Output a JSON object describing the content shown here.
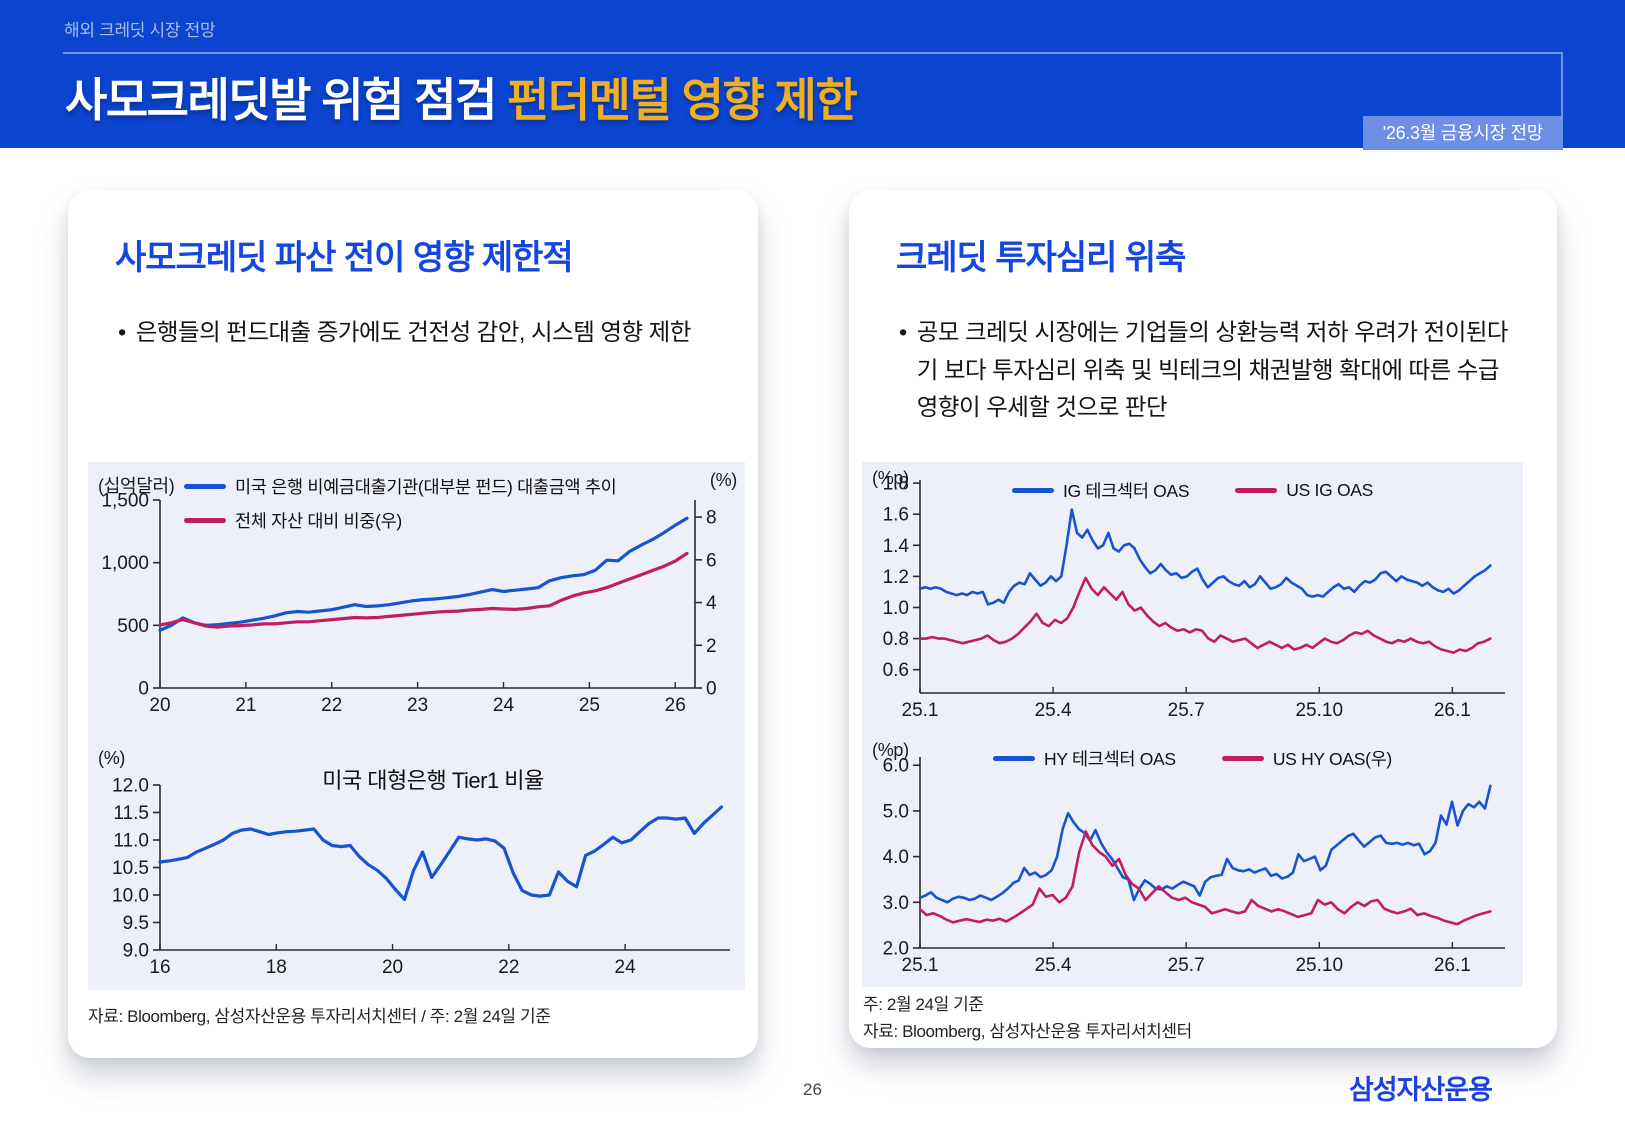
{
  "header": {
    "eyebrow": "해외 크레딧 시장 전망",
    "title_main": "사모크레딧발 위험 점검",
    "title_accent": "펀더멘털 영향 제한",
    "badge": "'26.3월 금융시장 전망"
  },
  "footer": {
    "page_number": "26",
    "logo": "삼성자산운용"
  },
  "left_panel": {
    "title": "사모크레딧 파산 전이 영향 제한적",
    "bullet_marker": "•",
    "bullet": "은행들의 펀드대출 증가에도 건전성 감안, 시스템 영향 제한",
    "source": "자료: Bloomberg, 삼성자산운용 투자리서치센터 / 주: 2월 24일 기준"
  },
  "right_panel": {
    "title": "크레딧 투자심리 위축",
    "bullet_marker": "•",
    "bullet": "공모 크레딧 시장에는 기업들의 상환능력 저하 우려가 전이된다기 보다 투자심리 위축 및 빅테크의 채권발행 확대에 따른 수급 영향이 우세할 것으로 판단",
    "note": "주: 2월 24일 기준",
    "source": "자료: Bloomberg, 삼성자산운용 투자리서치센터"
  },
  "colors": {
    "header_bg": "#0A44CF",
    "badge_bg": "#6E8FE6",
    "accent_yellow": "#F0AF23",
    "panel_title_blue": "#1447E0",
    "line_blue": "#1655CF",
    "line_pink": "#C01E5F",
    "chart_bg": "#EEF0F9"
  },
  "chart_data": [
    {
      "type": "line",
      "unit_left": "(십억달러)",
      "unit_right": "(%)",
      "legend": [
        {
          "label": "미국 은행 비예금대출기관(대부분 펀드) 대출금액 추이",
          "color": "#1655CF"
        },
        {
          "label": "전체 자산 대비 비중(우)",
          "color": "#C01E5F"
        }
      ],
      "ylim_left": [
        0,
        1500
      ],
      "yticks_left": [
        {
          "label": "1,500",
          "v": 1500
        },
        {
          "label": "1,000",
          "v": 1000
        },
        {
          "label": "500",
          "v": 500
        },
        {
          "label": "0",
          "v": 0
        }
      ],
      "ylim_right": [
        0,
        8.8
      ],
      "yticks_right": [
        {
          "label": "8",
          "v": 8
        },
        {
          "label": "6",
          "v": 6
        },
        {
          "label": "4",
          "v": 4
        },
        {
          "label": "2",
          "v": 2
        },
        {
          "label": "0",
          "v": 0
        }
      ],
      "xticks": [
        {
          "label": "20",
          "f": 0.0
        },
        {
          "label": "21",
          "f": 0.1605
        },
        {
          "label": "22",
          "f": 0.321
        },
        {
          "label": "23",
          "f": 0.4815
        },
        {
          "label": "24",
          "f": 0.642
        },
        {
          "label": "25",
          "f": 0.8026
        },
        {
          "label": "26",
          "f": 0.963
        }
      ],
      "series": [
        {
          "name": "미국 은행 비예금대출기관(대부분 펀드) 대출금액 추이",
          "color": "#1655CF",
          "axis": "left",
          "width": 3.2,
          "x0": 0,
          "x1": 0.985,
          "values": [
            460,
            500,
            560,
            520,
            500,
            505,
            515,
            525,
            540,
            555,
            575,
            600,
            610,
            605,
            615,
            625,
            645,
            665,
            650,
            655,
            665,
            680,
            695,
            705,
            710,
            720,
            730,
            745,
            765,
            785,
            770,
            780,
            790,
            800,
            855,
            880,
            895,
            905,
            940,
            1020,
            1015,
            1090,
            1140,
            1185,
            1240,
            1300,
            1355
          ]
        },
        {
          "name": "전체 자산 대비 비중(우)",
          "color": "#C01E5F",
          "axis": "right",
          "width": 3.2,
          "x0": 0,
          "x1": 0.985,
          "values": [
            2.95,
            3.05,
            3.2,
            3.05,
            2.9,
            2.85,
            2.9,
            2.92,
            2.95,
            3.0,
            3.0,
            3.05,
            3.1,
            3.1,
            3.15,
            3.2,
            3.25,
            3.3,
            3.28,
            3.3,
            3.35,
            3.4,
            3.45,
            3.5,
            3.55,
            3.58,
            3.6,
            3.65,
            3.68,
            3.72,
            3.7,
            3.68,
            3.72,
            3.8,
            3.85,
            4.1,
            4.3,
            4.45,
            4.55,
            4.7,
            4.9,
            5.1,
            5.3,
            5.5,
            5.7,
            5.95,
            6.3
          ]
        }
      ]
    },
    {
      "type": "line",
      "title": "미국 대형은행 Tier1 비율",
      "unit_left": "(%)",
      "ylim_left": [
        9.0,
        12.0
      ],
      "yticks_left": [
        {
          "label": "12.0",
          "v": 12.0
        },
        {
          "label": "11.5",
          "v": 11.5
        },
        {
          "label": "11.0",
          "v": 11.0
        },
        {
          "label": "10.5",
          "v": 10.5
        },
        {
          "label": "10.0",
          "v": 10.0
        },
        {
          "label": "9.5",
          "v": 9.5
        },
        {
          "label": "9.0",
          "v": 9.0
        }
      ],
      "xticks": [
        {
          "label": "16",
          "f": 0.0
        },
        {
          "label": "18",
          "f": 0.204
        },
        {
          "label": "20",
          "f": 0.408
        },
        {
          "label": "22",
          "f": 0.612
        },
        {
          "label": "24",
          "f": 0.816
        }
      ],
      "series": [
        {
          "name": "미국 대형은행 Tier1 비율",
          "color": "#1655CF",
          "axis": "left",
          "width": 3.2,
          "x0": 0,
          "x1": 0.985,
          "values": [
            10.6,
            10.62,
            10.65,
            10.68,
            10.78,
            10.85,
            10.92,
            11.0,
            11.12,
            11.18,
            11.2,
            11.15,
            11.1,
            11.13,
            11.15,
            11.16,
            11.18,
            11.2,
            11.0,
            10.9,
            10.88,
            10.9,
            10.7,
            10.55,
            10.45,
            10.3,
            10.1,
            9.92,
            10.45,
            10.78,
            10.32,
            10.55,
            10.8,
            11.05,
            11.02,
            11.0,
            11.02,
            10.98,
            10.85,
            10.4,
            10.08,
            10.0,
            9.98,
            10.0,
            10.42,
            10.25,
            10.15,
            10.72,
            10.8,
            10.92,
            11.05,
            10.95,
            11.0,
            11.15,
            11.3,
            11.4,
            11.4,
            11.38,
            11.4,
            11.12,
            11.3,
            11.45,
            11.6
          ]
        }
      ]
    },
    {
      "type": "line",
      "unit_left": "(%p)",
      "legend": [
        {
          "label": "IG 테크섹터 OAS",
          "color": "#1655CF"
        },
        {
          "label": "US IG OAS",
          "color": "#C01E5F"
        }
      ],
      "ylim_left": [
        0.45,
        1.82
      ],
      "yticks_left": [
        {
          "label": "1.8",
          "v": 1.8
        },
        {
          "label": "1.6",
          "v": 1.6
        },
        {
          "label": "1.4",
          "v": 1.4
        },
        {
          "label": "1.2",
          "v": 1.2
        },
        {
          "label": "1.0",
          "v": 1.0
        },
        {
          "label": "0.8",
          "v": 0.8
        },
        {
          "label": "0.6",
          "v": 0.6
        }
      ],
      "xticks": [
        {
          "label": "25.1",
          "f": 0.0
        },
        {
          "label": "25.4",
          "f": 0.2275
        },
        {
          "label": "25.7",
          "f": 0.455
        },
        {
          "label": "25.10",
          "f": 0.6825
        },
        {
          "label": "26.1",
          "f": 0.91
        }
      ],
      "series": [
        {
          "name": "IG 테크섹터 OAS",
          "color": "#1655CF",
          "axis": "left",
          "width": 2.6,
          "x0": 0,
          "x1": 0.975,
          "values": [
            1.12,
            1.13,
            1.12,
            1.13,
            1.12,
            1.1,
            1.09,
            1.08,
            1.09,
            1.08,
            1.1,
            1.09,
            1.1,
            1.02,
            1.03,
            1.05,
            1.03,
            1.1,
            1.14,
            1.16,
            1.15,
            1.22,
            1.18,
            1.14,
            1.16,
            1.2,
            1.17,
            1.2,
            1.4,
            1.63,
            1.48,
            1.45,
            1.5,
            1.43,
            1.38,
            1.4,
            1.48,
            1.38,
            1.36,
            1.4,
            1.41,
            1.38,
            1.31,
            1.26,
            1.22,
            1.24,
            1.28,
            1.24,
            1.21,
            1.22,
            1.19,
            1.2,
            1.23,
            1.25,
            1.18,
            1.13,
            1.16,
            1.19,
            1.2,
            1.17,
            1.15,
            1.14,
            1.17,
            1.13,
            1.15,
            1.2,
            1.16,
            1.12,
            1.13,
            1.15,
            1.19,
            1.16,
            1.14,
            1.12,
            1.08,
            1.07,
            1.08,
            1.07,
            1.1,
            1.13,
            1.15,
            1.12,
            1.13,
            1.1,
            1.14,
            1.17,
            1.16,
            1.18,
            1.22,
            1.23,
            1.2,
            1.17,
            1.2,
            1.18,
            1.17,
            1.16,
            1.14,
            1.16,
            1.13,
            1.11,
            1.1,
            1.12,
            1.09,
            1.11,
            1.14,
            1.17,
            1.2,
            1.22,
            1.24,
            1.27
          ]
        },
        {
          "name": "US IG OAS",
          "color": "#C01E5F",
          "axis": "left",
          "width": 2.6,
          "x0": 0,
          "x1": 0.975,
          "values": [
            0.8,
            0.8,
            0.81,
            0.8,
            0.8,
            0.79,
            0.78,
            0.77,
            0.78,
            0.79,
            0.8,
            0.82,
            0.79,
            0.77,
            0.78,
            0.8,
            0.83,
            0.87,
            0.91,
            0.96,
            0.9,
            0.88,
            0.92,
            0.9,
            0.93,
            1.0,
            1.1,
            1.19,
            1.12,
            1.08,
            1.13,
            1.09,
            1.05,
            1.1,
            1.02,
            0.98,
            1.0,
            0.95,
            0.91,
            0.88,
            0.9,
            0.87,
            0.85,
            0.86,
            0.84,
            0.86,
            0.85,
            0.8,
            0.78,
            0.82,
            0.8,
            0.78,
            0.79,
            0.8,
            0.77,
            0.74,
            0.76,
            0.78,
            0.76,
            0.74,
            0.76,
            0.73,
            0.74,
            0.76,
            0.74,
            0.77,
            0.8,
            0.78,
            0.77,
            0.79,
            0.82,
            0.84,
            0.83,
            0.85,
            0.82,
            0.8,
            0.78,
            0.77,
            0.79,
            0.78,
            0.8,
            0.78,
            0.77,
            0.78,
            0.75,
            0.73,
            0.72,
            0.71,
            0.73,
            0.72,
            0.74,
            0.77,
            0.78,
            0.8
          ]
        }
      ]
    },
    {
      "type": "line",
      "unit_left": "(%p)",
      "legend": [
        {
          "label": "HY 테크섹터 OAS",
          "color": "#1655CF"
        },
        {
          "label": "US HY OAS(우)",
          "color": "#C01E5F"
        }
      ],
      "ylim_left": [
        2.0,
        6.18
      ],
      "yticks_left": [
        {
          "label": "6.0",
          "v": 6.0
        },
        {
          "label": "5.0",
          "v": 5.0
        },
        {
          "label": "4.0",
          "v": 4.0
        },
        {
          "label": "3.0",
          "v": 3.0
        },
        {
          "label": "2.0",
          "v": 2.0
        }
      ],
      "xticks": [
        {
          "label": "25.1",
          "f": 0.0
        },
        {
          "label": "25.4",
          "f": 0.2275
        },
        {
          "label": "25.7",
          "f": 0.455
        },
        {
          "label": "25.10",
          "f": 0.6825
        },
        {
          "label": "26.1",
          "f": 0.91
        }
      ],
      "series": [
        {
          "name": "HY 테크섹터 OAS",
          "color": "#1655CF",
          "axis": "left",
          "width": 2.6,
          "x0": 0,
          "x1": 0.975,
          "values": [
            3.1,
            3.15,
            3.22,
            3.1,
            3.05,
            3.0,
            3.08,
            3.12,
            3.1,
            3.05,
            3.08,
            3.15,
            3.1,
            3.05,
            3.12,
            3.2,
            3.3,
            3.42,
            3.48,
            3.75,
            3.6,
            3.65,
            3.55,
            3.6,
            3.7,
            4.0,
            4.6,
            4.95,
            4.75,
            4.6,
            4.52,
            4.35,
            4.58,
            4.3,
            4.1,
            3.95,
            3.75,
            3.55,
            3.5,
            3.05,
            3.3,
            3.48,
            3.4,
            3.3,
            3.28,
            3.35,
            3.3,
            3.38,
            3.45,
            3.4,
            3.35,
            3.15,
            3.45,
            3.55,
            3.58,
            3.6,
            3.95,
            3.75,
            3.7,
            3.68,
            3.72,
            3.65,
            3.7,
            3.74,
            3.58,
            3.62,
            3.52,
            3.56,
            3.65,
            4.05,
            3.9,
            3.95,
            4.0,
            3.7,
            3.8,
            4.15,
            4.25,
            4.35,
            4.45,
            4.5,
            4.35,
            4.22,
            4.32,
            4.42,
            4.46,
            4.3,
            4.28,
            4.3,
            4.26,
            4.3,
            4.25,
            4.28,
            4.05,
            4.12,
            4.3,
            4.9,
            4.7,
            5.2,
            4.68,
            5.0,
            5.15,
            5.08,
            5.2,
            5.05,
            5.55
          ]
        },
        {
          "name": "US HY OAS(우)",
          "color": "#C01E5F",
          "axis": "left",
          "width": 2.6,
          "x0": 0,
          "x1": 0.975,
          "values": [
            2.85,
            2.72,
            2.76,
            2.7,
            2.62,
            2.56,
            2.6,
            2.63,
            2.6,
            2.57,
            2.62,
            2.6,
            2.64,
            2.58,
            2.66,
            2.75,
            2.85,
            2.95,
            3.3,
            3.12,
            3.16,
            3.0,
            3.1,
            3.35,
            4.1,
            4.55,
            4.25,
            4.1,
            4.0,
            3.8,
            3.95,
            3.6,
            3.4,
            3.3,
            3.05,
            3.2,
            3.35,
            3.22,
            3.1,
            3.05,
            3.1,
            3.0,
            2.95,
            2.9,
            2.76,
            2.8,
            2.85,
            2.8,
            2.76,
            2.8,
            3.05,
            2.92,
            2.86,
            2.8,
            2.85,
            2.8,
            2.74,
            2.68,
            2.72,
            2.76,
            3.05,
            2.95,
            3.0,
            2.85,
            2.76,
            2.9,
            3.0,
            2.92,
            3.02,
            3.05,
            2.86,
            2.8,
            2.76,
            2.8,
            2.86,
            2.72,
            2.76,
            2.7,
            2.66,
            2.6,
            2.56,
            2.52,
            2.6,
            2.66,
            2.72,
            2.76,
            2.8
          ]
        }
      ]
    }
  ]
}
